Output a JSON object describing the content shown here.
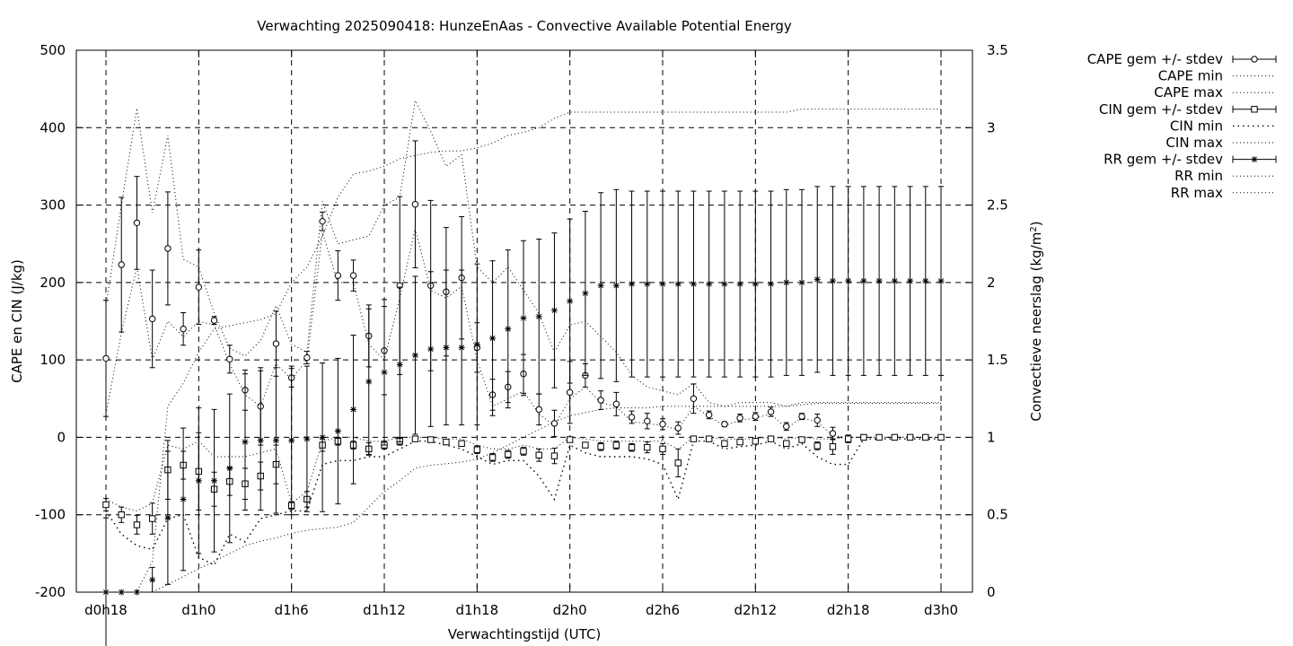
{
  "chart_data": {
    "type": "line",
    "title": "Verwachting 2025090418: HunzeEnAas - Convective Available Potential Energy",
    "xlabel": "Verwachtingstijd (UTC)",
    "ylabel": "CAPE en CIN (J/kg)",
    "y2label": "Convectieve neerslag (kg/m²)",
    "y2label_base": "Convectieve neerslag (kg/m",
    "y2label_sup": "2",
    "y2label_end": ")",
    "xlim": [
      0,
      54
    ],
    "ylim": [
      -200,
      500
    ],
    "y2lim": [
      0,
      3.5
    ],
    "grid": true,
    "legend_position": "outside-right",
    "x_ticks": [
      {
        "x": 0,
        "label": "d0h18"
      },
      {
        "x": 6,
        "label": "d1h0"
      },
      {
        "x": 12,
        "label": "d1h6"
      },
      {
        "x": 18,
        "label": "d1h12"
      },
      {
        "x": 24,
        "label": "d1h18"
      },
      {
        "x": 30,
        "label": "d2h0"
      },
      {
        "x": 36,
        "label": "d2h6"
      },
      {
        "x": 42,
        "label": "d2h12"
      },
      {
        "x": 48,
        "label": "d2h18"
      },
      {
        "x": 54,
        "label": "d3h0"
      }
    ],
    "y_ticks": [
      -200,
      -100,
      0,
      100,
      200,
      300,
      400,
      500
    ],
    "y2_ticks": [
      "0",
      "0.5",
      "1",
      "1.5",
      "2",
      "2.5",
      "3",
      "3.5"
    ],
    "legend": [
      {
        "label": "CAPE gem +/- stdev",
        "style": "errorbar-circle"
      },
      {
        "label": "CAPE min",
        "style": "dotted"
      },
      {
        "label": "CAPE max",
        "style": "dotted"
      },
      {
        "label": "CIN gem +/- stdev",
        "style": "errorbar-square"
      },
      {
        "label": "CIN min",
        "style": "dotted-coarse"
      },
      {
        "label": "CIN max",
        "style": "dotted"
      },
      {
        "label": "RR gem +/- stdev",
        "style": "errorbar-star"
      },
      {
        "label": "RR min",
        "style": "dotted"
      },
      {
        "label": "RR max",
        "style": "dotted"
      }
    ],
    "x": [
      0,
      1,
      2,
      3,
      4,
      5,
      6,
      7,
      8,
      9,
      10,
      11,
      12,
      13,
      14,
      15,
      16,
      17,
      18,
      19,
      20,
      21,
      22,
      23,
      24,
      25,
      26,
      27,
      28,
      29,
      30,
      31,
      32,
      33,
      34,
      35,
      36,
      37,
      38,
      39,
      40,
      41,
      42,
      43,
      44,
      45,
      46,
      47,
      48,
      49,
      50,
      51,
      52,
      53,
      54
    ],
    "series": [
      {
        "name": "CAPE gem +/- stdev",
        "marker": "circle",
        "values": [
          102,
          223,
          277,
          153,
          244,
          140,
          194,
          151,
          101,
          61,
          40,
          121,
          77,
          103,
          279,
          209,
          209,
          131,
          112,
          196,
          301,
          196,
          188,
          206,
          116,
          55,
          65,
          82,
          36,
          18,
          58,
          80,
          48,
          43,
          26,
          21,
          17,
          12,
          50,
          29,
          17,
          25,
          27,
          33,
          14,
          27,
          22,
          5,
          null,
          null,
          null,
          null,
          null,
          null,
          null
        ],
        "stdev": [
          75,
          87,
          60,
          63,
          73,
          21,
          48,
          5,
          18,
          26,
          50,
          42,
          12,
          8,
          12,
          32,
          20,
          40,
          57,
          115,
          82,
          110,
          83,
          79,
          32,
          20,
          20,
          25,
          20,
          17,
          40,
          15,
          12,
          15,
          8,
          10,
          7,
          8,
          19,
          5,
          3,
          5,
          5,
          6,
          5,
          4,
          8,
          8,
          null,
          null,
          null,
          null,
          null,
          null,
          null
        ]
      },
      {
        "name": "CAPE min",
        "values": [
          30,
          135,
          220,
          100,
          150,
          130,
          150,
          145,
          95,
          55,
          40,
          95,
          75,
          100,
          265,
          200,
          200,
          120,
          100,
          180,
          270,
          190,
          180,
          195,
          100,
          40,
          50,
          60,
          30,
          15,
          50,
          65,
          45,
          40,
          20,
          18,
          15,
          10,
          40,
          27,
          15,
          22,
          25,
          30,
          12,
          25,
          20,
          2,
          0,
          0,
          0,
          0,
          0,
          0,
          0
        ]
      },
      {
        "name": "CAPE max",
        "values": [
          170,
          300,
          425,
          290,
          390,
          230,
          220,
          160,
          115,
          105,
          125,
          170,
          120,
          110,
          305,
          250,
          255,
          260,
          300,
          310,
          435,
          395,
          350,
          365,
          220,
          200,
          220,
          190,
          160,
          110,
          145,
          150,
          130,
          110,
          80,
          65,
          60,
          55,
          70,
          45,
          40,
          45,
          45,
          45,
          40,
          45,
          45,
          45,
          45,
          45,
          45,
          45,
          45,
          45,
          45
        ]
      },
      {
        "name": "CIN gem +/- stdev",
        "marker": "square",
        "values": [
          -87,
          -100,
          -113,
          -105,
          -42,
          -36,
          -44,
          -67,
          -57,
          -60,
          -50,
          -35,
          -88,
          -80,
          -10,
          -5,
          -10,
          -15,
          -10,
          -5,
          -2,
          -3,
          -6,
          -8,
          -16,
          -26,
          -22,
          -18,
          -23,
          -24,
          -3,
          -10,
          -12,
          -10,
          -13,
          -13,
          -15,
          -33,
          -2,
          -2,
          -8,
          -6,
          -5,
          -2,
          -8,
          -3,
          -11,
          -12,
          -2,
          0,
          0,
          0,
          0,
          0,
          0
        ],
        "stdev": [
          8,
          10,
          12,
          20,
          38,
          18,
          50,
          22,
          18,
          20,
          18,
          25,
          5,
          10,
          8,
          5,
          5,
          8,
          5,
          5,
          2,
          2,
          3,
          3,
          5,
          5,
          5,
          5,
          8,
          10,
          3,
          3,
          5,
          5,
          5,
          7,
          7,
          18,
          2,
          2,
          3,
          3,
          3,
          2,
          3,
          2,
          5,
          10,
          5,
          1,
          1,
          1,
          1,
          1,
          1
        ]
      },
      {
        "name": "CIN min",
        "values": [
          -95,
          -125,
          -140,
          -145,
          -105,
          -100,
          -155,
          -165,
          -125,
          -135,
          -105,
          -100,
          -95,
          -95,
          -35,
          -30,
          -30,
          -25,
          -25,
          -15,
          -5,
          -5,
          -10,
          -15,
          -25,
          -35,
          -30,
          -30,
          -50,
          -80,
          -10,
          -20,
          -25,
          -25,
          -25,
          -28,
          -35,
          -80,
          -5,
          -5,
          -15,
          -12,
          -10,
          -5,
          -15,
          -8,
          -25,
          -35,
          -35,
          -2,
          -2,
          -2,
          -2,
          -2,
          -2
        ]
      },
      {
        "name": "CIN max",
        "values": [
          -80,
          -90,
          -95,
          -85,
          -10,
          -15,
          -5,
          -25,
          -25,
          -25,
          -20,
          -15,
          -85,
          -70,
          -5,
          0,
          0,
          -5,
          -5,
          0,
          0,
          0,
          -2,
          -2,
          -10,
          -15,
          -15,
          -10,
          -15,
          -15,
          0,
          -2,
          -5,
          -5,
          -5,
          -5,
          -5,
          -15,
          0,
          0,
          -2,
          -2,
          -2,
          0,
          -2,
          0,
          -2,
          -2,
          0,
          0,
          0,
          0,
          0,
          0,
          0
        ]
      },
      {
        "name": "RR gem +/- stdev",
        "marker": "star",
        "values": [
          0.0,
          0.0,
          0.0,
          0.08,
          0.48,
          0.6,
          0.72,
          0.72,
          0.8,
          0.97,
          0.98,
          0.98,
          0.98,
          0.99,
          1.0,
          1.04,
          1.18,
          1.36,
          1.42,
          1.47,
          1.53,
          1.57,
          1.58,
          1.58,
          1.6,
          1.64,
          1.7,
          1.77,
          1.78,
          1.82,
          1.88,
          1.93,
          1.98,
          1.98,
          1.99,
          1.99,
          1.99,
          1.99,
          1.99,
          1.99,
          1.99,
          1.99,
          1.99,
          1.99,
          2.0,
          2.0,
          2.02,
          2.01,
          2.01,
          2.01,
          2.01,
          2.01,
          2.01,
          2.01,
          2.01
        ],
        "stdev": [
          0.48,
          0,
          0,
          0.08,
          0.43,
          0.46,
          0.47,
          0.46,
          0.48,
          0.44,
          0.45,
          0.47,
          0.48,
          0.47,
          0.48,
          0.47,
          0.48,
          0.47,
          0.47,
          0.5,
          0.51,
          0.5,
          0.5,
          0.5,
          0.52,
          0.5,
          0.51,
          0.5,
          0.5,
          0.5,
          0.53,
          0.53,
          0.6,
          0.62,
          0.6,
          0.6,
          0.6,
          0.6,
          0.6,
          0.6,
          0.6,
          0.6,
          0.6,
          0.6,
          0.6,
          0.6,
          0.6,
          0.61,
          0.61,
          0.61,
          0.61,
          0.61,
          0.61,
          0.61,
          0.61
        ]
      },
      {
        "name": "RR min",
        "values": [
          0.0,
          0.0,
          0.0,
          0.0,
          0.05,
          0.1,
          0.15,
          0.2,
          0.25,
          0.3,
          0.33,
          0.35,
          0.38,
          0.4,
          0.41,
          0.42,
          0.45,
          0.55,
          0.65,
          0.72,
          0.8,
          0.82,
          0.83,
          0.84,
          0.86,
          0.9,
          0.95,
          1.0,
          1.05,
          1.1,
          1.14,
          1.16,
          1.18,
          1.19,
          1.19,
          1.19,
          1.2,
          1.2,
          1.2,
          1.2,
          1.2,
          1.2,
          1.2,
          1.2,
          1.2,
          1.21,
          1.22,
          1.22,
          1.22,
          1.22,
          1.22,
          1.22,
          1.22,
          1.22,
          1.22
        ]
      },
      {
        "name": "RR max",
        "values": [
          0.0,
          0.0,
          0.0,
          0.2,
          1.2,
          1.35,
          1.55,
          1.7,
          1.72,
          1.74,
          1.76,
          1.8,
          2.0,
          2.1,
          2.3,
          2.55,
          2.7,
          2.72,
          2.75,
          2.8,
          2.82,
          2.84,
          2.85,
          2.85,
          2.87,
          2.9,
          2.95,
          2.97,
          3.0,
          3.06,
          3.1,
          3.1,
          3.1,
          3.1,
          3.1,
          3.1,
          3.1,
          3.1,
          3.1,
          3.1,
          3.1,
          3.1,
          3.1,
          3.1,
          3.1,
          3.12,
          3.12,
          3.12,
          3.12,
          3.12,
          3.12,
          3.12,
          3.12,
          3.12,
          3.12
        ]
      }
    ]
  }
}
